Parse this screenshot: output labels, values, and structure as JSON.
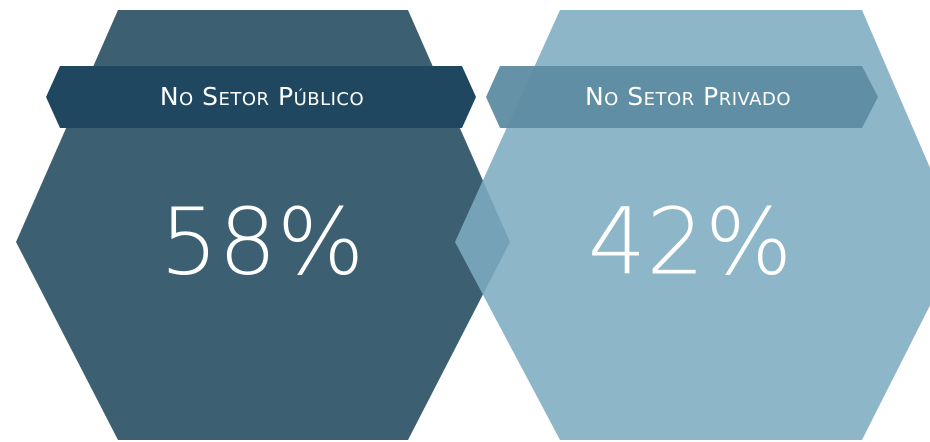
{
  "items": [
    {
      "label": "No Setor Público",
      "value": "58%"
    },
    {
      "label": "No Setor Privado",
      "value": "42%"
    }
  ]
}
